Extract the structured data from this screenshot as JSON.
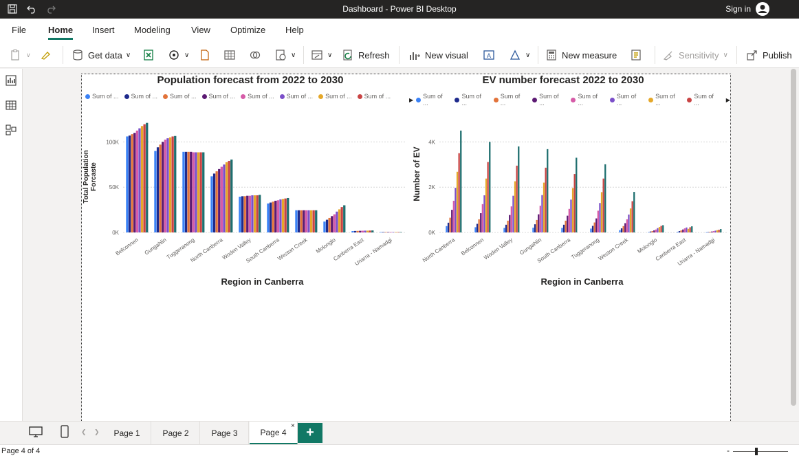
{
  "window": {
    "title": "Dashboard - Power BI Desktop",
    "sign_in": "Sign in"
  },
  "menu": {
    "items": [
      "File",
      "Home",
      "Insert",
      "Modeling",
      "View",
      "Optimize",
      "Help"
    ],
    "active": "Home"
  },
  "ribbon": {
    "get_data": "Get data",
    "refresh": "Refresh",
    "new_visual": "New visual",
    "new_measure": "New measure",
    "sensitivity": "Sensitivity",
    "publish": "Publish"
  },
  "colors": {
    "accent": "#117865",
    "series": [
      "#3b82f6",
      "#1e2a8c",
      "#e2733a",
      "#5c1a73",
      "#d65ca8",
      "#7b4fc9",
      "#e5a82a",
      "#c94444",
      "#1f6f6f"
    ]
  },
  "chart_data": [
    {
      "type": "bar",
      "title": "Population forecast from 2022 to 2030",
      "xlabel": "Region in Canberra",
      "ylabel": "Total Population Forcaste",
      "legend_labels": [
        "Sum of ...",
        "Sum of ...",
        "Sum of ...",
        "Sum of ...",
        "Sum of ...",
        "Sum of ...",
        "Sum of ...",
        "Sum of ..."
      ],
      "ylim": [
        0,
        120000
      ],
      "yticks": [
        0,
        50000,
        100000
      ],
      "ytick_labels": [
        "0K",
        "50K",
        "100K"
      ],
      "categories": [
        "Belconnen",
        "Gungahlin",
        "Tuggeranong",
        "North Canberra",
        "Woden Valley",
        "South Canberra",
        "Weston Creek",
        "Molonglo",
        "Canberra East",
        "Uriarra - Namadgi"
      ],
      "series": [
        {
          "values": [
            106000,
            90000,
            89000,
            62000,
            39500,
            32000,
            24500,
            12000,
            1500,
            500
          ]
        },
        {
          "values": [
            107000,
            94000,
            89000,
            65000,
            40000,
            33000,
            24500,
            14000,
            1600,
            500
          ]
        },
        {
          "values": [
            108500,
            97000,
            89000,
            67500,
            40000,
            34000,
            24500,
            16000,
            1700,
            500
          ]
        },
        {
          "values": [
            110000,
            100000,
            89000,
            70000,
            40500,
            35000,
            24500,
            18000,
            1800,
            500
          ]
        },
        {
          "values": [
            112500,
            102500,
            88500,
            72500,
            40500,
            35500,
            24500,
            20000,
            1900,
            500
          ]
        },
        {
          "values": [
            115000,
            104000,
            88500,
            75000,
            41000,
            36500,
            24500,
            23000,
            2000,
            500
          ]
        },
        {
          "values": [
            117500,
            105000,
            88500,
            77500,
            41000,
            37000,
            24500,
            25500,
            2000,
            500
          ]
        },
        {
          "values": [
            119500,
            106000,
            88500,
            79000,
            41000,
            37500,
            24500,
            28000,
            2100,
            500
          ]
        },
        {
          "values": [
            121000,
            106500,
            88500,
            80500,
            41500,
            38000,
            24500,
            30000,
            2200,
            500
          ]
        }
      ]
    },
    {
      "type": "bar",
      "title": "EV number forecast 2022 to 2030",
      "xlabel": "Region in Canberra",
      "ylabel": "Number of EV",
      "legend_labels": [
        "Sum of ...",
        "Sum of ...",
        "Sum of ...",
        "Sum of ...",
        "Sum of ...",
        "Sum of ...",
        "Sum of ...",
        "Sum of ..."
      ],
      "ylim": [
        0,
        4800
      ],
      "yticks": [
        0,
        2000,
        4000
      ],
      "ytick_labels": [
        "0K",
        "2K",
        "4K"
      ],
      "categories": [
        "North Canberra",
        "Belconnen",
        "Woden Valley",
        "Gungahlin",
        "South Canberra",
        "Tuggeranong",
        "Weston Creek",
        "Molonglo",
        "Canberra East",
        "Uriarra - Namadgi"
      ],
      "series": [
        {
          "values": [
            280,
            230,
            200,
            210,
            200,
            170,
            100,
            20,
            30,
            10
          ]
        },
        {
          "values": [
            430,
            380,
            340,
            360,
            340,
            290,
            180,
            40,
            60,
            20
          ]
        },
        {
          "values": [
            650,
            580,
            520,
            550,
            520,
            440,
            280,
            60,
            90,
            30
          ]
        },
        {
          "values": [
            1000,
            850,
            770,
            800,
            740,
            620,
            410,
            90,
            130,
            40
          ]
        },
        {
          "values": [
            1400,
            1250,
            1150,
            1180,
            1040,
            960,
            580,
            130,
            180,
            60
          ]
        },
        {
          "values": [
            1970,
            1640,
            1620,
            1650,
            1450,
            1300,
            790,
            190,
            220,
            80
          ]
        },
        {
          "values": [
            2680,
            2380,
            2260,
            2200,
            1960,
            1780,
            1060,
            240,
            160,
            100
          ]
        },
        {
          "values": [
            3500,
            3110,
            2950,
            2860,
            2580,
            2380,
            1380,
            290,
            230,
            120
          ]
        },
        {
          "values": [
            4500,
            4000,
            3800,
            3680,
            3300,
            3010,
            1790,
            320,
            270,
            150
          ]
        }
      ]
    }
  ],
  "pages": {
    "tabs": [
      "Page 1",
      "Page 2",
      "Page 3",
      "Page 4"
    ],
    "active": "Page 4",
    "add": "+"
  },
  "status": {
    "page_indicator": "Page 4 of 4"
  }
}
